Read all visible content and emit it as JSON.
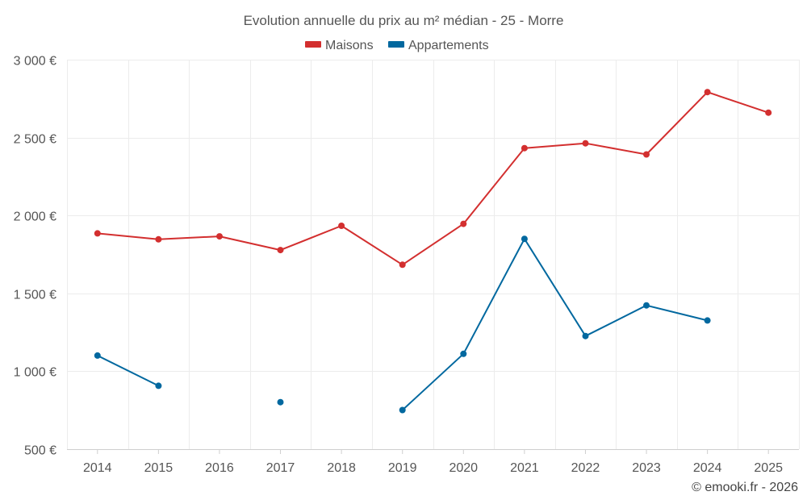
{
  "chart_data": {
    "type": "line",
    "title": "Evolution annuelle du prix au m² médian - 25 - Morre",
    "xlabel": "",
    "ylabel": "",
    "categories": [
      "2014",
      "2015",
      "2016",
      "2017",
      "2018",
      "2019",
      "2020",
      "2021",
      "2022",
      "2023",
      "2024",
      "2025"
    ],
    "ylim": [
      500,
      3000
    ],
    "yticks": [
      500,
      1000,
      1500,
      2000,
      2500,
      3000
    ],
    "ytick_labels": [
      "500 €",
      "1 000 €",
      "1 500 €",
      "2 000 €",
      "2 500 €",
      "3 000 €"
    ],
    "grid": true,
    "legend_position": "top-center",
    "series": [
      {
        "name": "Maisons",
        "color": "#d32f2f",
        "values": [
          1885,
          1847,
          1866,
          1778,
          1934,
          1684,
          1946,
          2432,
          2463,
          2392,
          2792,
          2660
        ]
      },
      {
        "name": "Appartements",
        "color": "#01689f",
        "values": [
          1101,
          907,
          null,
          802,
          null,
          751,
          1112,
          1850,
          1226,
          1423,
          1326,
          null
        ]
      }
    ]
  },
  "credit": "© emooki.fr - 2026"
}
